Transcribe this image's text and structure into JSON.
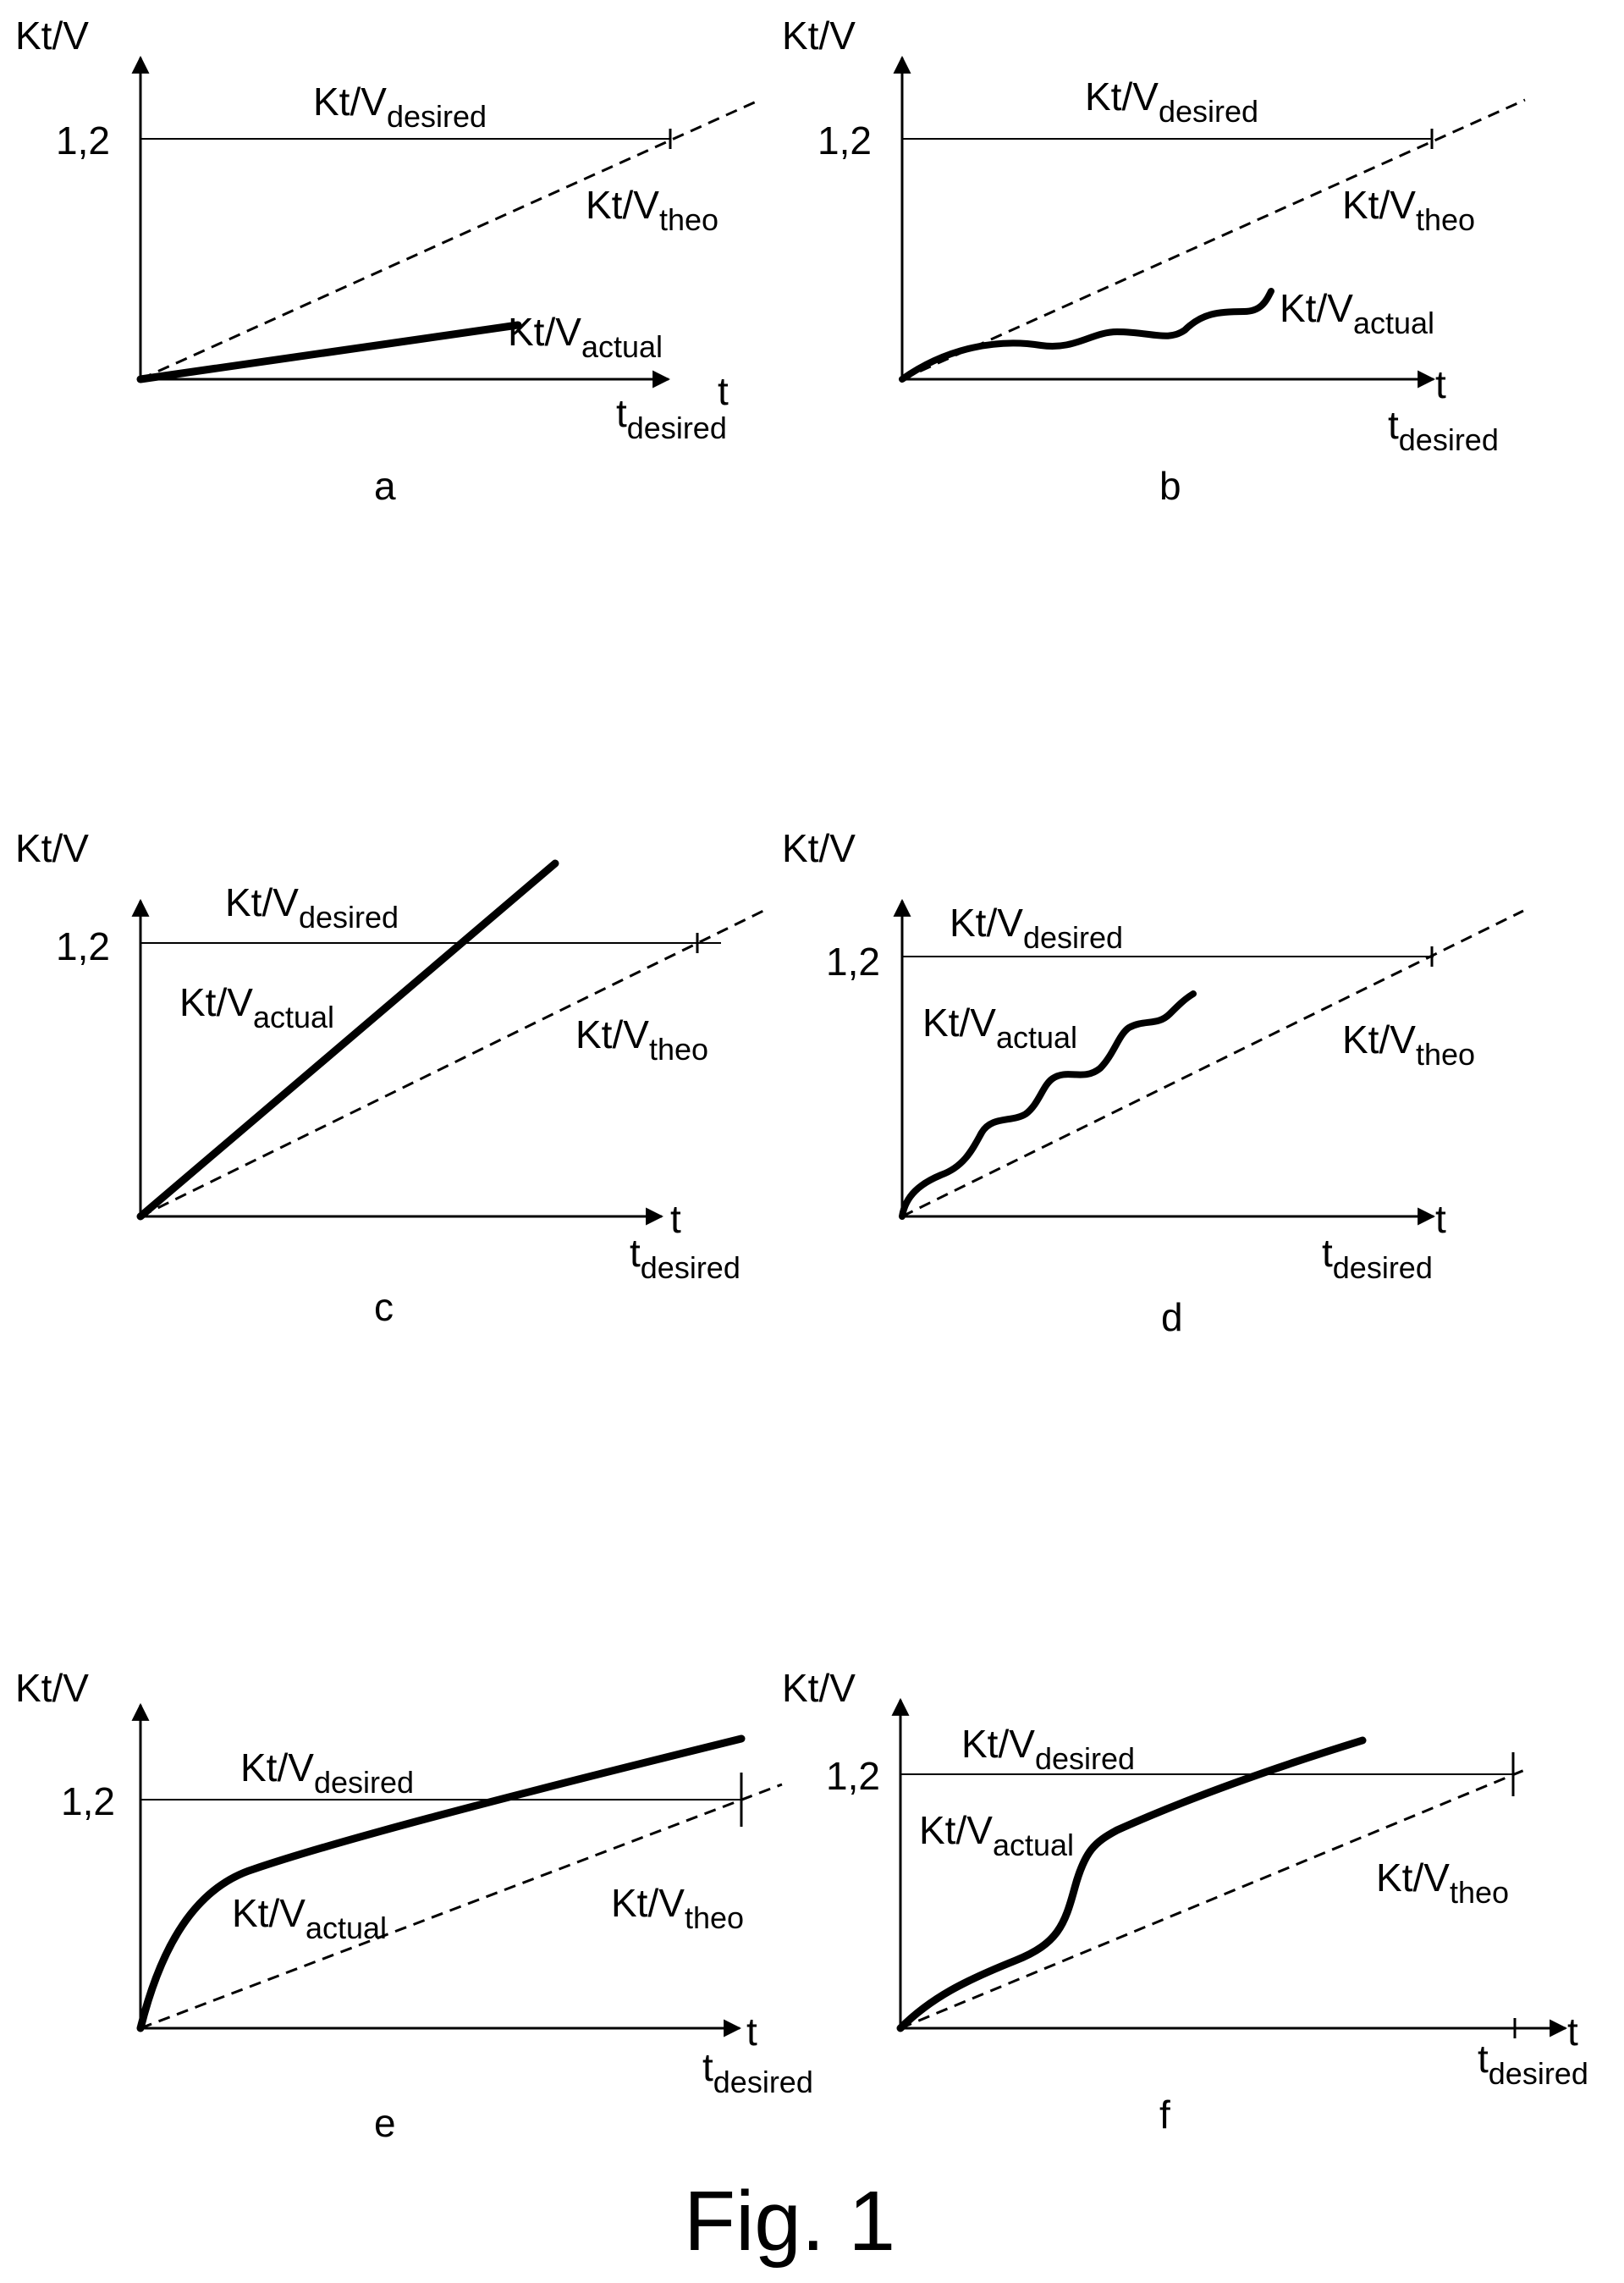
{
  "figure_caption": "Fig. 1",
  "panels": [
    {
      "letter": "a",
      "y_axis_label": "Kt/V",
      "x_axis_label": "t",
      "tick_value": "1,2",
      "x_marker_label": {
        "main": "t",
        "sub": "desired"
      },
      "desired_label": {
        "main": "Kt/V",
        "sub": "desired"
      },
      "theo_label": {
        "main": "Kt/V",
        "sub": "theo"
      },
      "actual_label": {
        "main": "Kt/V",
        "sub": "actual"
      },
      "actual_shape": "straight line, lower slope than theoretical"
    },
    {
      "letter": "b",
      "y_axis_label": "Kt/V",
      "x_axis_label": "t",
      "tick_value": "1,2",
      "x_marker_label": {
        "main": "t",
        "sub": "desired"
      },
      "desired_label": {
        "main": "Kt/V",
        "sub": "desired"
      },
      "theo_label": {
        "main": "Kt/V",
        "sub": "theo"
      },
      "actual_label": {
        "main": "Kt/V",
        "sub": "actual"
      },
      "actual_shape": "wavy curve below theoretical"
    },
    {
      "letter": "c",
      "y_axis_label": "Kt/V",
      "x_axis_label": "t",
      "tick_value": "1,2",
      "x_marker_label": {
        "main": "t",
        "sub": "desired"
      },
      "desired_label": {
        "main": "Kt/V",
        "sub": "desired"
      },
      "theo_label": {
        "main": "Kt/V",
        "sub": "theo"
      },
      "actual_label": {
        "main": "Kt/V",
        "sub": "actual"
      },
      "actual_shape": "straight line, steeper than theoretical"
    },
    {
      "letter": "d",
      "y_axis_label": "Kt/V",
      "x_axis_label": "t",
      "tick_value": "1,2",
      "x_marker_label": {
        "main": "t",
        "sub": "desired"
      },
      "desired_label": {
        "main": "Kt/V",
        "sub": "desired"
      },
      "theo_label": {
        "main": "Kt/V",
        "sub": "theo"
      },
      "actual_label": {
        "main": "Kt/V",
        "sub": "actual"
      },
      "actual_shape": "wavy curve above theoretical"
    },
    {
      "letter": "e",
      "y_axis_label": "Kt/V",
      "x_axis_label": "t",
      "tick_value": "1,2",
      "x_marker_label": {
        "main": "t",
        "sub": "desired"
      },
      "desired_label": {
        "main": "Kt/V",
        "sub": "desired"
      },
      "theo_label": {
        "main": "Kt/V",
        "sub": "theo"
      },
      "actual_label": {
        "main": "Kt/V",
        "sub": "actual"
      },
      "actual_shape": "fast initial rise then linear"
    },
    {
      "letter": "f",
      "y_axis_label": "Kt/V",
      "x_axis_label": "t",
      "tick_value": "1,2",
      "x_marker_label": {
        "main": "t",
        "sub": "desired"
      },
      "desired_label": {
        "main": "Kt/V",
        "sub": "desired"
      },
      "theo_label": {
        "main": "Kt/V",
        "sub": "theo"
      },
      "actual_label": {
        "main": "Kt/V",
        "sub": "actual"
      },
      "actual_shape": "step-like increase"
    }
  ],
  "colors": {
    "ink": "#000000",
    "background": "#ffffff"
  }
}
